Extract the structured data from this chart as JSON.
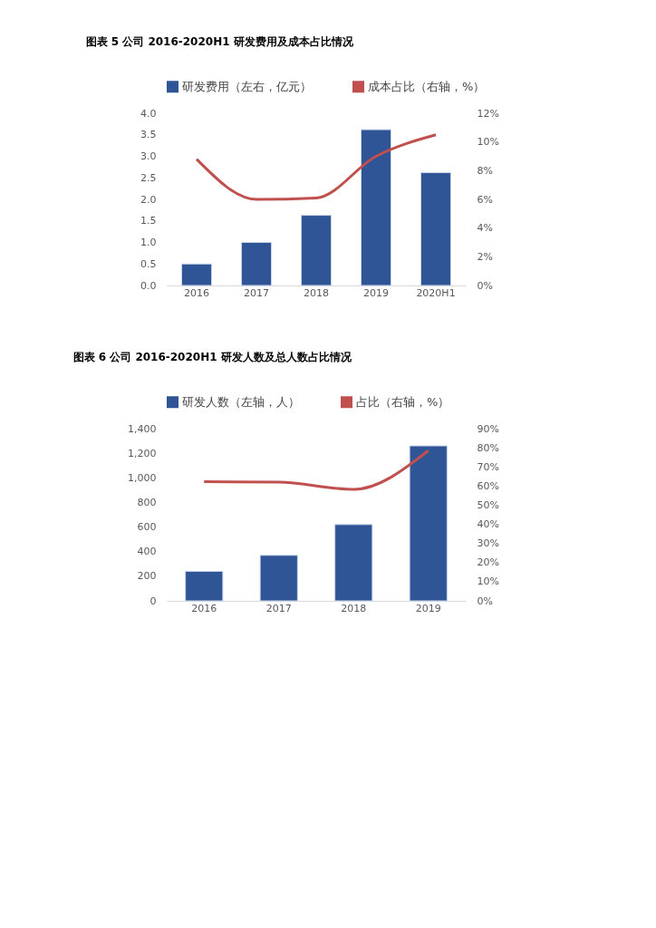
{
  "chart_data": [
    {
      "type": "bar",
      "title": "图表 5 公司 2016-2020H1 研发费用及成本占比情况",
      "categories": [
        "2016",
        "2017",
        "2018",
        "2019",
        "2020H1"
      ],
      "series": [
        {
          "name": "研发费用（左右，亿元）",
          "color": "#2f5597",
          "values": [
            0.5,
            1.0,
            1.63,
            3.62,
            2.62
          ]
        },
        {
          "name": "成本占比（右轴，%）",
          "type": "line",
          "axis": "y2",
          "color": "#c0504d",
          "line_style": "solid",
          "values": [
            8.8,
            6.0,
            6.1,
            9.0,
            10.5
          ]
        }
      ],
      "ylim": [
        0,
        4
      ],
      "yticks": [
        {
          "value": 0,
          "label": "0.0"
        },
        {
          "value": 0.5,
          "label": "0.5"
        },
        {
          "value": 1,
          "label": "1.0"
        },
        {
          "value": 1.5,
          "label": "1.5"
        },
        {
          "value": 2,
          "label": "2.0"
        },
        {
          "value": 2.5,
          "label": "2.5"
        },
        {
          "value": 3,
          "label": "3.0"
        },
        {
          "value": 3.5,
          "label": "3.5"
        },
        {
          "value": 4,
          "label": "4.0"
        }
      ],
      "y2lim": [
        0,
        12
      ],
      "y2ticks": [
        {
          "value": 0,
          "label": "0%"
        },
        {
          "value": 2,
          "label": "2%"
        },
        {
          "value": 4,
          "label": "4%"
        },
        {
          "value": 6,
          "label": "6%"
        },
        {
          "value": 8,
          "label": "8%"
        },
        {
          "value": 10,
          "label": "10%"
        },
        {
          "value": 12,
          "label": "12%"
        }
      ],
      "legend": "top",
      "grid": false,
      "marker": "none"
    },
    {
      "type": "bar",
      "title": "图表 6 公司 2016-2020H1 研发人数及总人数占比情况",
      "categories": [
        "2016",
        "2017",
        "2018",
        "2019"
      ],
      "series": [
        {
          "name": "研发人数（左轴，人）",
          "color": "#2f5597",
          "values": [
            240,
            370,
            620,
            1260
          ]
        },
        {
          "name": "占比（右轴，%）",
          "type": "line",
          "axis": "y2",
          "color": "#c0504d",
          "line_style": "solid",
          "values": [
            62.3,
            62.0,
            58.3,
            78.5
          ]
        }
      ],
      "ylim": [
        0,
        1400
      ],
      "yticks": [
        0,
        200,
        400,
        600,
        800,
        {
          "value": 1000,
          "label": "1,000"
        },
        {
          "value": 1200,
          "label": "1,200"
        },
        {
          "value": 1400,
          "label": "1,400"
        }
      ],
      "y2lim": [
        0,
        90
      ],
      "y2ticks": [
        {
          "value": 0,
          "label": "0%"
        },
        {
          "value": 10,
          "label": "10%"
        },
        {
          "value": 20,
          "label": "20%"
        },
        {
          "value": 30,
          "label": "30%"
        },
        {
          "value": 40,
          "label": "40%"
        },
        {
          "value": 50,
          "label": "50%"
        },
        {
          "value": 60,
          "label": "60%"
        },
        {
          "value": 70,
          "label": "70%"
        },
        {
          "value": 80,
          "label": "80%"
        },
        {
          "value": 90,
          "label": "90%"
        }
      ],
      "legend": "top",
      "grid": false,
      "marker": "none"
    }
  ]
}
